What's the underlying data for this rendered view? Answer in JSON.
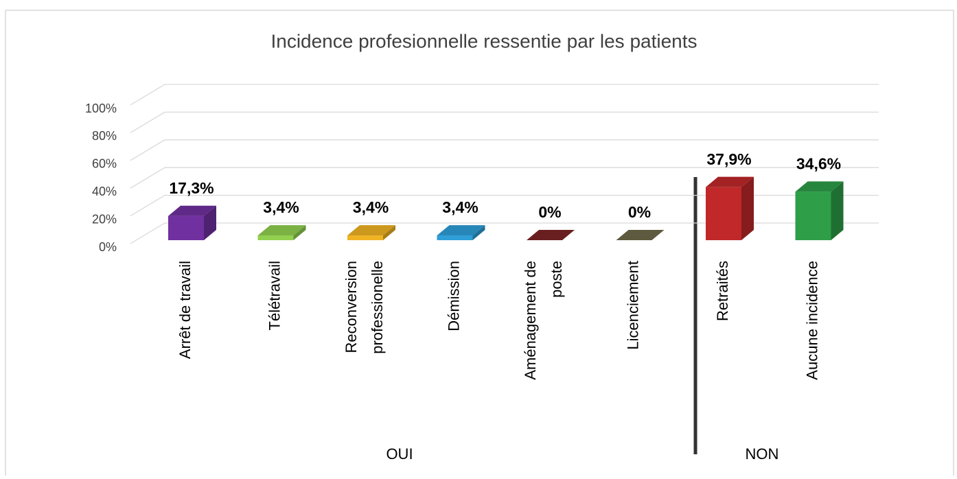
{
  "chart_data": {
    "type": "bar3d",
    "title": "Incidence profesionnelle ressentie par les patients",
    "categories": [
      "Arrêt de travail",
      "Télétravail",
      "Reconversion professionelle",
      "Démission",
      "Aménagement de poste",
      "Licenciement",
      "Retraités",
      "Aucune incidence"
    ],
    "values": [
      17.3,
      3.4,
      3.4,
      3.4,
      0,
      0,
      37.9,
      34.6
    ],
    "value_labels": [
      "17,3%",
      "3,4%",
      "3,4%",
      "3,4%",
      "0%",
      "0%",
      "37,9%",
      "34,6%"
    ],
    "colors": [
      "#7030a0",
      "#92d050",
      "#f0b323",
      "#2e9fd8",
      "#7b2525",
      "#6d6a4a",
      "#c0282a",
      "#2e9e48"
    ],
    "groups": [
      "OUI",
      "NON"
    ],
    "ylim": [
      0,
      100
    ],
    "yticks": [
      {
        "value": 0,
        "label": "0%"
      },
      {
        "value": 20,
        "label": "20%"
      },
      {
        "value": 40,
        "label": "40%"
      },
      {
        "value": 60,
        "label": "60%"
      },
      {
        "value": 80,
        "label": "80%"
      },
      {
        "value": 100,
        "label": "100%"
      }
    ],
    "grid": true
  }
}
